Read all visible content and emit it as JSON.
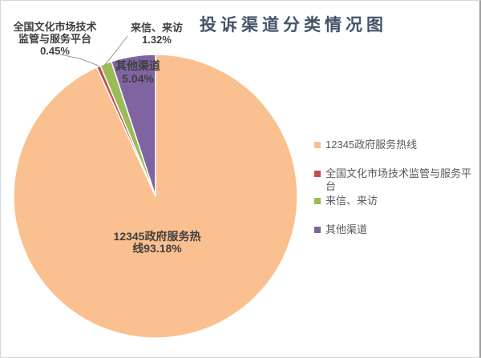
{
  "title": "投诉渠道分类情况图",
  "chart_data": {
    "type": "pie",
    "title": "投诉渠道分类情况图",
    "unit": "percent",
    "start_angle_deg": 0,
    "direction": "clockwise",
    "legend_position": "right",
    "slices": [
      {
        "label": "12345政府服务热线",
        "value": 93.18,
        "color": "#FAC090"
      },
      {
        "label": "全国文化市场技术监管与服务平台",
        "value": 0.45,
        "color": "#C0504D"
      },
      {
        "label": "来信、来访",
        "value": 1.32,
        "color": "#9BBB59"
      },
      {
        "label": "其他渠道",
        "value": 5.04,
        "color": "#8064A2"
      }
    ],
    "data_labels": [
      "12345政府服务热线93.18%",
      "全国文化市场技术监管与服务平台0.45%",
      "来信、来访1.32%",
      "其他渠道5.04%"
    ]
  },
  "labels": {
    "platform": {
      "line1": "全国文化市场技术",
      "line2": "监管与服务平台",
      "line3": "0.45%"
    },
    "letters": {
      "line1": "来信、来访",
      "line2": "1.32%"
    },
    "other": {
      "line1": "其他渠道",
      "line2": "5.04%"
    },
    "main": {
      "line1": "12345政府服务热",
      "line2": "线93.18%"
    }
  },
  "legend": {
    "items": [
      {
        "label": "12345政府服务热线",
        "color": "#FAC090"
      },
      {
        "label": "全国文化市场技术监管与服务平台",
        "color": "#C0504D"
      },
      {
        "label": "来信、来访",
        "color": "#9BBB59"
      },
      {
        "label": "其他渠道",
        "color": "#8064A2"
      }
    ]
  },
  "style": {
    "slice_border_color": "#ffffff",
    "leader_line_color": "#999999",
    "title_color": "#44546A",
    "label_color": "#3F3F3F",
    "legend_text_color": "#595959"
  }
}
